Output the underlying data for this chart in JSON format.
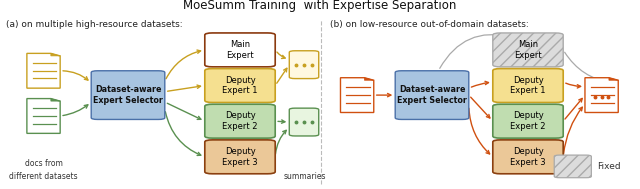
{
  "title": "MoeSumm Training  with Expertise Separation",
  "title_fontsize": 8.5,
  "fig_width": 6.4,
  "fig_height": 1.89,
  "dpi": 100,
  "colors": {
    "main_expert_border": "#8B3A0F",
    "main_expert_fill": "#FFFFFF",
    "deputy1_border": "#C8A020",
    "deputy1_fill": "#F5E090",
    "deputy2_border": "#5A9050",
    "deputy2_fill": "#C0DDB0",
    "deputy3_border": "#8B4010",
    "deputy3_fill": "#EBC898",
    "selector_border": "#4A70A8",
    "selector_fill": "#A8C4E0",
    "fixed_fill": "#DCDCDC",
    "arrow_yellow": "#C8A020",
    "arrow_green": "#5A9050",
    "arrow_orange": "#D05010",
    "arrow_gray": "#AAAAAA",
    "doc_yellow": "#C8A020",
    "doc_green": "#5A9050",
    "doc_orange": "#D05010",
    "divider_color": "#BBBBBB"
  },
  "subtitle_a": "(a) on multiple high-resource datasets:",
  "subtitle_b": "(b) on low-resource out-of-domain datasets:",
  "label_docs_from": "docs from",
  "label_different_datasets": "different datasets",
  "label_summaries": "summaries",
  "label_fixed": "Fixed",
  "experts": [
    "Main\nExpert",
    "Deputy\nExpert 1",
    "Deputy\nExpert 2",
    "Deputy\nExpert 3"
  ],
  "selector_label": "Dataset-aware\nExpert Selector"
}
